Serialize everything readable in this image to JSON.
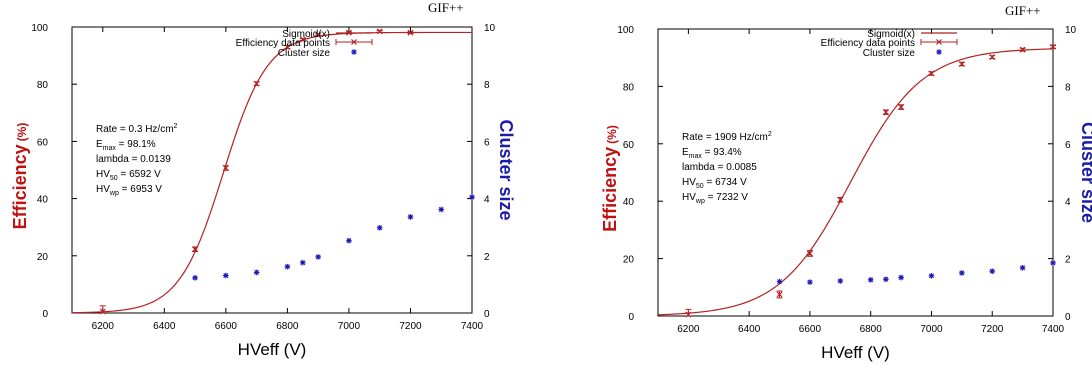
{
  "chart_data": [
    {
      "type": "scatter",
      "corner_label": "GIF++",
      "xlabel": "HVeff (V)",
      "ylabel_main": "Efficiency",
      "ylabel_unit": "(%)",
      "y2label": "Cluster size",
      "xlim": [
        6100,
        7400
      ],
      "ylim": [
        0,
        100
      ],
      "y2lim": [
        0,
        10
      ],
      "xticks": [
        6200,
        6400,
        6600,
        6800,
        7000,
        7200,
        7400
      ],
      "yticks": [
        0,
        20,
        40,
        60,
        80,
        100
      ],
      "y2ticks": [
        0,
        2,
        4,
        6,
        8,
        10
      ],
      "grid": false,
      "legend_position": "top-right",
      "legend": [
        "Sigmoid(x)",
        "Efficiency data points",
        "Cluster size"
      ],
      "annotations": {
        "rate": {
          "prefix": "Rate = 0.3 Hz/cm",
          "sup": "2"
        },
        "emax": {
          "base": "E",
          "sub": "max",
          "value": " =  98.1%"
        },
        "lambda": "lambda = 0.0139",
        "hv50": {
          "base": "HV",
          "sub": "50",
          "value": " =  6592 V"
        },
        "hvwp": {
          "base": "HV",
          "sub": "wp",
          "value": " =  6953 V"
        }
      },
      "sigmoid": {
        "emax": 98.1,
        "lambda": 0.0139,
        "hv50": 6592
      },
      "efficiency_points": {
        "x": [
          6200,
          6500,
          6600,
          6700,
          6800,
          6850,
          6900,
          7000,
          7100,
          7200
        ],
        "y": [
          0.5,
          22.3,
          50.7,
          80.2,
          93.0,
          95.6,
          97.3,
          98.0,
          98.5,
          98.0
        ],
        "yerr": [
          2.0,
          0.8,
          0.8,
          0.6,
          0.5,
          0.4,
          0.3,
          0.3,
          0.3,
          0.3
        ]
      },
      "cluster_points": {
        "x": [
          6500,
          6600,
          6700,
          6800,
          6850,
          6900,
          7000,
          7100,
          7200,
          7300,
          7400
        ],
        "y": [
          1.23,
          1.31,
          1.42,
          1.62,
          1.76,
          1.96,
          2.53,
          2.98,
          3.36,
          3.62,
          4.05
        ]
      },
      "colors": {
        "efficiency": "#b22222",
        "cluster": "#1a1ab4",
        "axis_label_red": "#c01010",
        "axis_label_blue": "#1c1ca8"
      }
    },
    {
      "type": "scatter",
      "corner_label": "GIF++",
      "xlabel": "HVeff (V)",
      "ylabel_main": "Efficiency",
      "ylabel_unit": "(%)",
      "y2label": "Cluster size",
      "xlim": [
        6100,
        7400
      ],
      "ylim": [
        0,
        100
      ],
      "y2lim": [
        0,
        10
      ],
      "xticks": [
        6200,
        6400,
        6600,
        6800,
        7000,
        7200,
        7400
      ],
      "yticks": [
        0,
        20,
        40,
        60,
        80,
        100
      ],
      "y2ticks": [
        0,
        2,
        4,
        6,
        8,
        10
      ],
      "grid": false,
      "legend_position": "top-right",
      "legend": [
        "Sigmoid(x)",
        "Efficiency data points",
        "Cluster size"
      ],
      "annotations": {
        "rate": {
          "prefix": "Rate = 1909 Hz/cm",
          "sup": "2"
        },
        "emax": {
          "base": "E",
          "sub": "max",
          "value": " =  93.4%"
        },
        "lambda": "lambda = 0.0085",
        "hv50": {
          "base": "HV",
          "sub": "50",
          "value": " =  6734 V"
        },
        "hvwp": {
          "base": "HV",
          "sub": "wp",
          "value": " =  7232 V"
        }
      },
      "sigmoid": {
        "emax": 93.4,
        "lambda": 0.0085,
        "hv50": 6734
      },
      "efficiency_points": {
        "x": [
          6200,
          6500,
          6600,
          6700,
          6850,
          6900,
          7000,
          7100,
          7200,
          7300,
          7400
        ],
        "y": [
          0.5,
          7.5,
          21.8,
          40.5,
          71.0,
          72.8,
          84.5,
          87.8,
          90.2,
          92.8,
          93.8
        ],
        "yerr": [
          1.8,
          1.2,
          1.0,
          0.8,
          0.8,
          0.8,
          0.6,
          0.6,
          0.5,
          0.5,
          0.5
        ]
      },
      "cluster_points": {
        "x": [
          6500,
          6600,
          6700,
          6800,
          6850,
          6900,
          7000,
          7100,
          7200,
          7300,
          7400
        ],
        "y": [
          1.2,
          1.18,
          1.22,
          1.26,
          1.28,
          1.34,
          1.4,
          1.5,
          1.56,
          1.68,
          1.85
        ]
      },
      "colors": {
        "efficiency": "#b22222",
        "cluster": "#1a1ab4",
        "axis_label_red": "#c01010",
        "axis_label_blue": "#1c1ca8"
      }
    }
  ]
}
